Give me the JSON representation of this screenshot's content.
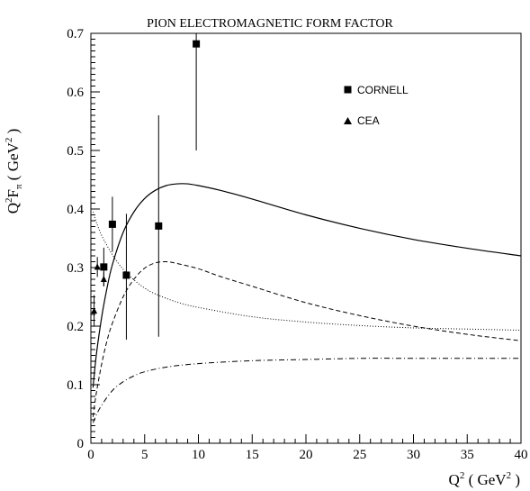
{
  "chart_data": {
    "type": "scatter",
    "title": "PION ELECTROMAGNETIC FORM FACTOR",
    "ylabel": {
      "main": "Q",
      "sup": "2",
      "f": "F",
      "sub": "π",
      "unit_open": " ( GeV",
      "unit_sup": "2",
      "unit_close": " )"
    },
    "xlabel": {
      "main": "Q",
      "sup": "2",
      "unit_open": " ( GeV",
      "unit_sup": "2",
      "unit_close": " )"
    },
    "xlim": [
      0,
      40
    ],
    "ylim": [
      0,
      0.7
    ],
    "xticks": [
      0,
      5,
      10,
      15,
      20,
      25,
      30,
      35,
      40
    ],
    "yticks": [
      0,
      0.1,
      0.2,
      0.3,
      0.4,
      0.5,
      0.6,
      0.7
    ],
    "xtick_labels": [
      "0",
      "5",
      "10",
      "15",
      "20",
      "25",
      "30",
      "35",
      "40"
    ],
    "ytick_labels": [
      "0",
      "0.1",
      "0.2",
      "0.3",
      "0.4",
      "0.5",
      "0.6",
      "0.7"
    ],
    "legend": {
      "position": "top-right",
      "entries": [
        {
          "label": "CORNELL",
          "marker": "square"
        },
        {
          "label": "CEA",
          "marker": "triangle"
        }
      ]
    },
    "series": [
      {
        "marker": "square",
        "points": [
          {
            "x": 1.2,
            "y": 0.301,
            "lo": 0.268,
            "hi": 0.334
          },
          {
            "x": 2.0,
            "y": 0.374,
            "lo": 0.327,
            "hi": 0.421
          },
          {
            "x": 3.3,
            "y": 0.287,
            "lo": 0.177,
            "hi": 0.392
          },
          {
            "x": 6.3,
            "y": 0.371,
            "lo": 0.182,
            "hi": 0.56
          },
          {
            "x": 9.8,
            "y": 0.682,
            "lo": 0.5,
            "hi": 0.7
          }
        ]
      },
      {
        "marker": "triangle",
        "points": [
          {
            "x": 0.3,
            "y": 0.226,
            "lo": 0.199,
            "hi": 0.253
          },
          {
            "x": 0.6,
            "y": 0.301,
            "lo": 0.284,
            "hi": 0.318
          },
          {
            "x": 1.2,
            "y": 0.28,
            "lo": 0.268,
            "hi": 0.292
          }
        ]
      }
    ],
    "curves": [
      {
        "style": "solid",
        "points": [
          [
            0.2,
            0.095
          ],
          [
            0.5,
            0.15
          ],
          [
            1,
            0.215
          ],
          [
            1.5,
            0.265
          ],
          [
            2,
            0.305
          ],
          [
            3,
            0.36
          ],
          [
            4,
            0.395
          ],
          [
            5,
            0.418
          ],
          [
            6,
            0.432
          ],
          [
            7,
            0.44
          ],
          [
            8,
            0.443
          ],
          [
            9,
            0.443
          ],
          [
            10,
            0.44
          ],
          [
            12,
            0.432
          ],
          [
            15,
            0.417
          ],
          [
            20,
            0.39
          ],
          [
            25,
            0.367
          ],
          [
            30,
            0.348
          ],
          [
            35,
            0.333
          ],
          [
            40,
            0.32
          ]
        ]
      },
      {
        "style": "dashed",
        "points": [
          [
            0.2,
            0.045
          ],
          [
            0.5,
            0.085
          ],
          [
            1,
            0.135
          ],
          [
            1.5,
            0.175
          ],
          [
            2,
            0.205
          ],
          [
            3,
            0.25
          ],
          [
            4,
            0.28
          ],
          [
            5,
            0.299
          ],
          [
            6,
            0.308
          ],
          [
            7,
            0.31
          ],
          [
            8,
            0.307
          ],
          [
            10,
            0.298
          ],
          [
            12,
            0.285
          ],
          [
            15,
            0.268
          ],
          [
            20,
            0.24
          ],
          [
            25,
            0.218
          ],
          [
            30,
            0.2
          ],
          [
            35,
            0.186
          ],
          [
            40,
            0.175
          ]
        ]
      },
      {
        "style": "dotted",
        "points": [
          [
            0.2,
            0.395
          ],
          [
            0.5,
            0.378
          ],
          [
            1,
            0.355
          ],
          [
            2,
            0.322
          ],
          [
            3,
            0.297
          ],
          [
            4,
            0.279
          ],
          [
            5,
            0.265
          ],
          [
            6,
            0.255
          ],
          [
            8,
            0.241
          ],
          [
            10,
            0.232
          ],
          [
            15,
            0.216
          ],
          [
            20,
            0.207
          ],
          [
            25,
            0.201
          ],
          [
            30,
            0.197
          ],
          [
            35,
            0.195
          ],
          [
            40,
            0.193
          ]
        ]
      },
      {
        "style": "dashdot",
        "points": [
          [
            0.2,
            0.035
          ],
          [
            0.5,
            0.048
          ],
          [
            1,
            0.065
          ],
          [
            2,
            0.09
          ],
          [
            3,
            0.105
          ],
          [
            4,
            0.115
          ],
          [
            5,
            0.122
          ],
          [
            7,
            0.13
          ],
          [
            10,
            0.136
          ],
          [
            15,
            0.141
          ],
          [
            20,
            0.143
          ],
          [
            25,
            0.145
          ],
          [
            30,
            0.145
          ],
          [
            35,
            0.145
          ],
          [
            40,
            0.145
          ]
        ]
      }
    ]
  }
}
